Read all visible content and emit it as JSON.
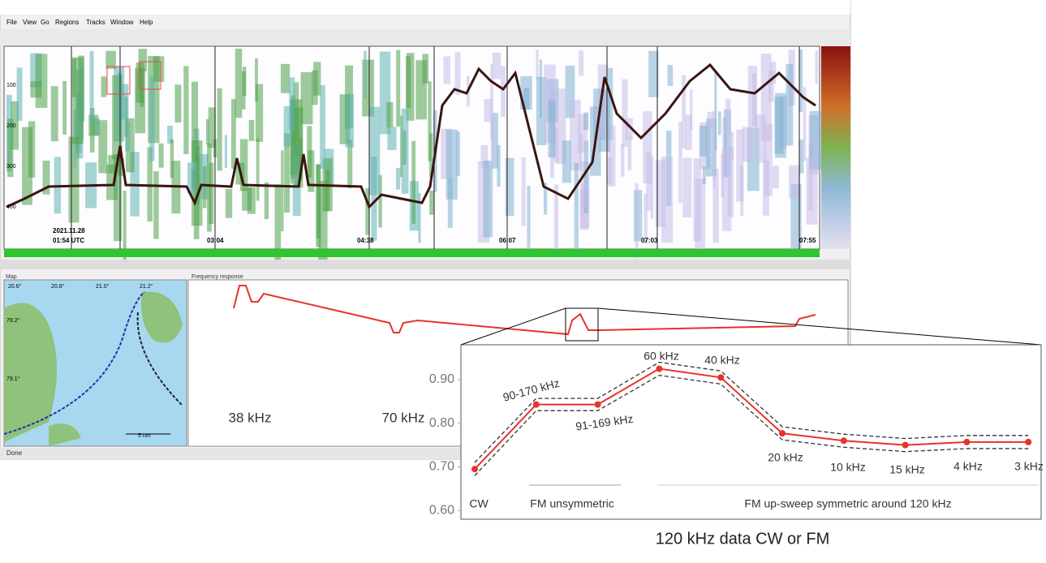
{
  "window": {
    "menu": [
      "File",
      "View",
      "Go",
      "Regions",
      "Tracks",
      "Window",
      "Help"
    ]
  },
  "echogram": {
    "depth_labels": [
      "100",
      "200",
      "300",
      "400"
    ],
    "date": "2021.11.28",
    "time_labels": [
      "01:54 UTC",
      "03:04",
      "04:38",
      "06:07",
      "07:03",
      "07:55"
    ]
  },
  "map": {
    "title": "Map",
    "lon_labels": [
      "20.6°",
      "20.8°",
      "21.0°",
      "21.2°"
    ],
    "lat_labels": [
      "79.2°",
      "79.1°"
    ],
    "scale": "5 nm"
  },
  "response": {
    "title": "Frequency response",
    "labels": [
      "38 kHz",
      "70 kHz"
    ]
  },
  "status": "Done",
  "chart_data": {
    "type": "line",
    "caption": "120 kHz data CW or FM",
    "categories": [
      "CW",
      "90-170 kHz",
      "91-169 kHz",
      "60 kHz",
      "40 kHz",
      "20 kHz",
      "10 kHz",
      "15 kHz",
      "4 kHz",
      "3 kHz"
    ],
    "values": [
      0.695,
      0.843,
      0.843,
      0.925,
      0.905,
      0.777,
      0.76,
      0.75,
      0.757,
      0.757
    ],
    "band_upper": [
      0.71,
      0.857,
      0.857,
      0.94,
      0.92,
      0.792,
      0.775,
      0.765,
      0.772,
      0.772
    ],
    "band_lower": [
      0.68,
      0.829,
      0.829,
      0.91,
      0.89,
      0.762,
      0.745,
      0.735,
      0.742,
      0.742
    ],
    "color": "#e8322c",
    "band_color": "#333333",
    "groups": [
      "FM unsymmetric",
      "FM up-sweep symmetric around 120 kHz"
    ],
    "ylim": [
      0.58,
      0.98
    ],
    "yticks": [
      {
        "value": 0.6,
        "label": "0.60"
      },
      {
        "value": 0.7,
        "label": "0.70"
      },
      {
        "value": 0.8,
        "label": "0.80"
      },
      {
        "value": 0.9,
        "label": "0.90"
      }
    ]
  }
}
